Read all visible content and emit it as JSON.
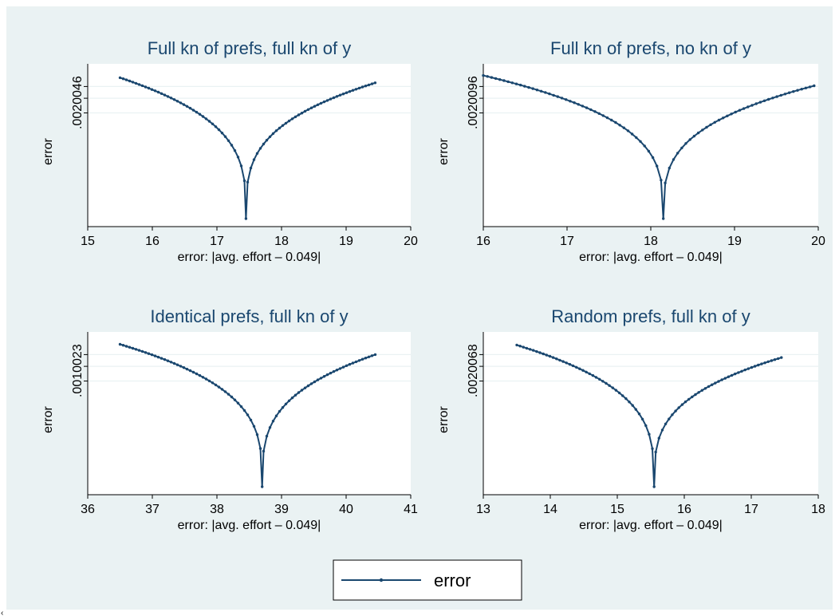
{
  "colors": {
    "background": "#eaf2f3",
    "plot_area": "#ffffff",
    "gridline": "#eaf2f3",
    "line": "#1a476f",
    "title": "#1a476f"
  },
  "chart_data": [
    {
      "type": "line",
      "title": "Full kn of prefs, full kn of y",
      "xlabel": "error: |avg. effort – 0.049|",
      "ylabel": "error",
      "xlim": [
        15,
        20
      ],
      "xticks": [
        "15",
        "16",
        "17",
        "18",
        "19",
        "20"
      ],
      "ytick_label": ".0020046",
      "grid": true,
      "series": [
        {
          "name": "error",
          "x_range": [
            15.5,
            19.45
          ],
          "x_min": 17.45,
          "y_left": 0.96,
          "y_right": 0.925,
          "y_min": 0.0
        }
      ]
    },
    {
      "type": "line",
      "title": "Full kn of prefs, no kn of y",
      "xlabel": "error: |avg. effort – 0.049|",
      "ylabel": "error",
      "xlim": [
        16,
        20
      ],
      "xticks": [
        "16",
        "17",
        "18",
        "19",
        "20"
      ],
      "ytick_label": ".0020096",
      "grid": true,
      "series": [
        {
          "name": "error",
          "x_range": [
            16.0,
            19.95
          ],
          "x_min": 18.15,
          "y_left": 0.975,
          "y_right": 0.905,
          "y_min": 0.0
        }
      ]
    },
    {
      "type": "line",
      "title": "Identical prefs, full kn of y",
      "xlabel": "error: |avg. effort – 0.049|",
      "ylabel": "error",
      "xlim": [
        36,
        41
      ],
      "xticks": [
        "36",
        "37",
        "38",
        "39",
        "40",
        "41"
      ],
      "ytick_label": ".0010023",
      "grid": true,
      "series": [
        {
          "name": "error",
          "x_range": [
            36.5,
            40.45
          ],
          "x_min": 38.7,
          "y_left": 0.97,
          "y_right": 0.9,
          "y_min": 0.0
        }
      ]
    },
    {
      "type": "line",
      "title": "Random prefs, full kn of y",
      "xlabel": "error: |avg. effort – 0.049|",
      "ylabel": "error",
      "xlim": [
        13,
        18
      ],
      "xticks": [
        "13",
        "14",
        "15",
        "16",
        "17",
        "18"
      ],
      "ytick_label": ".0020068",
      "grid": true,
      "series": [
        {
          "name": "error",
          "x_range": [
            13.5,
            17.45
          ],
          "x_min": 15.55,
          "y_left": 0.965,
          "y_right": 0.88,
          "y_min": 0.0
        }
      ]
    }
  ],
  "legend": {
    "label": "error"
  },
  "corner_mark": "‹"
}
